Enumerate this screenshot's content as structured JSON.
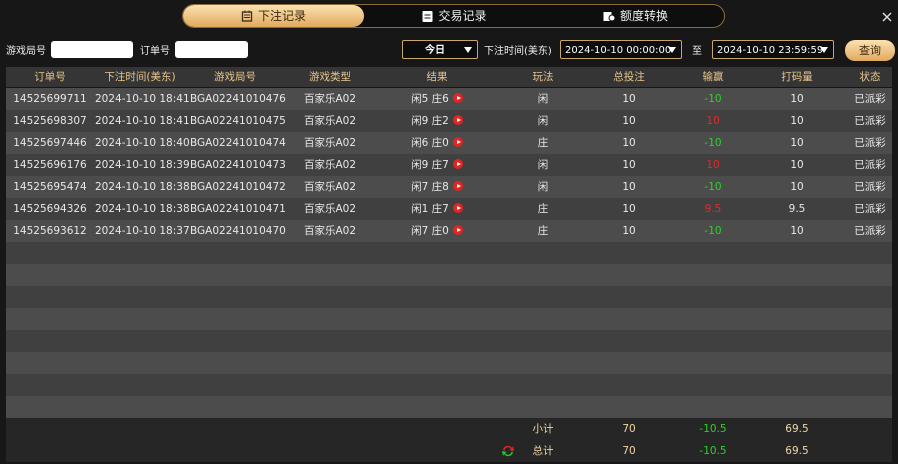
{
  "tabs": [
    "下注记录",
    "交易记录",
    "额度转换"
  ],
  "filters": {
    "round_label": "游戏局号",
    "order_label": "订单号",
    "period": "今日",
    "time_label": "下注时间(美东)",
    "start": "2024-10-10 00:00:00",
    "to": "至",
    "end": "2024-10-10 23:59:59",
    "search": "查询"
  },
  "table": {
    "headers": [
      "订单号",
      "下注时间(美东)",
      "游戏局号",
      "游戏类型",
      "结果",
      "玩法",
      "总投注",
      "输赢",
      "打码量",
      "状态"
    ],
    "rows": [
      [
        "14525699711",
        "2024-10-10 18:41",
        "BGA02241010476",
        "百家乐A02",
        "闲5 庄6",
        "闲",
        "10",
        "-10",
        "10",
        "已派彩"
      ],
      [
        "14525698307",
        "2024-10-10 18:41",
        "BGA02241010475",
        "百家乐A02",
        "闲9 庄2",
        "闲",
        "10",
        "10",
        "10",
        "已派彩"
      ],
      [
        "14525697446",
        "2024-10-10 18:40",
        "BGA02241010474",
        "百家乐A02",
        "闲6 庄0",
        "庄",
        "10",
        "-10",
        "10",
        "已派彩"
      ],
      [
        "14525696176",
        "2024-10-10 18:39",
        "BGA02241010473",
        "百家乐A02",
        "闲9 庄7",
        "闲",
        "10",
        "10",
        "10",
        "已派彩"
      ],
      [
        "14525695474",
        "2024-10-10 18:38",
        "BGA02241010472",
        "百家乐A02",
        "闲7 庄8",
        "闲",
        "10",
        "-10",
        "10",
        "已派彩"
      ],
      [
        "14525694326",
        "2024-10-10 18:38",
        "BGA02241010471",
        "百家乐A02",
        "闲1 庄7",
        "庄",
        "10",
        "9.5",
        "9.5",
        "已派彩"
      ],
      [
        "14525693612",
        "2024-10-10 18:37",
        "BGA02241010470",
        "百家乐A02",
        "闲7 庄0",
        "庄",
        "10",
        "-10",
        "10",
        "已派彩"
      ]
    ],
    "subtotal": {
      "label": "小计",
      "total_bet": "70",
      "win_loss": "-10.5",
      "turnover": "69.5"
    },
    "total": {
      "label": "总计",
      "total_bet": "70",
      "win_loss": "-10.5",
      "turnover": "69.5"
    }
  }
}
